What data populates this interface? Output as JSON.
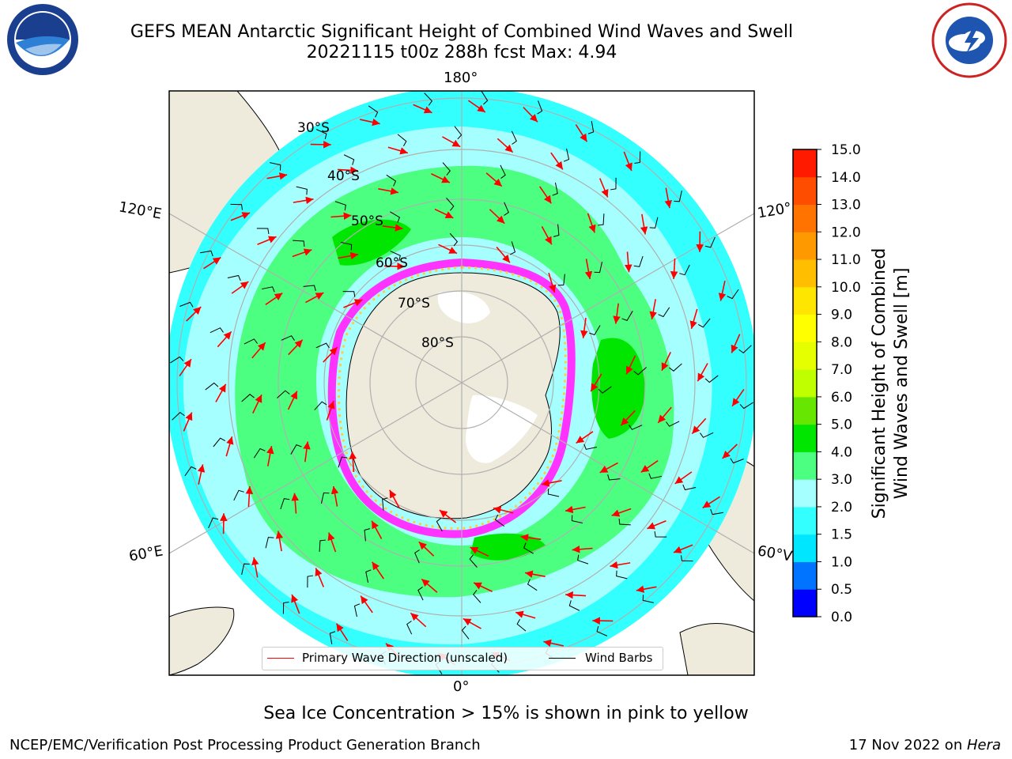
{
  "title_line1": "GEFS MEAN Antarctic Significant Height of Combined Wind Waves and Swell",
  "title_line2": "20221115 t00z 288h fcst   Max: 4.94",
  "longitude_labels": {
    "top": "180°",
    "bottom": "0°",
    "upper_left": "120°E",
    "upper_right": "120°",
    "lower_left": "60°E",
    "lower_right": "60°V"
  },
  "latitude_labels": [
    "30°S",
    "40°S",
    "50°S",
    "60°S",
    "70°S",
    "80°S"
  ],
  "colorbar": {
    "label_line1": "Significant Height of Combined",
    "label_line2": "Wind Waves and Swell [m]",
    "ticks": [
      "0.0",
      "0.5",
      "1.0",
      "1.5",
      "2.0",
      "3.0",
      "4.0",
      "5.0",
      "6.0",
      "7.0",
      "8.0",
      "9.0",
      "10.0",
      "11.0",
      "12.0",
      "13.0",
      "14.0",
      "15.0"
    ],
    "colors": [
      "#0000ff",
      "#0073ff",
      "#00e6ff",
      "#33ffff",
      "#a6ffff",
      "#4dff80",
      "#00e600",
      "#66e600",
      "#bfff00",
      "#e6ff00",
      "#ffff00",
      "#ffe600",
      "#ffbf00",
      "#ff9900",
      "#ff7300",
      "#ff4d00",
      "#ff1a00"
    ]
  },
  "legend": {
    "primary_wave": "Primary Wave Direction (unscaled)",
    "wind_barbs": "Wind Barbs"
  },
  "caption": "Sea Ice Concentration > 15% is shown in pink to yellow",
  "footer_left": "NCEP/EMC/Verification Post Processing Product Generation Branch",
  "footer_right_prefix": "17 Nov 2022 on ",
  "footer_right_machine": "Hera",
  "colors": {
    "land": "#eeebdc",
    "sea_ice_pink": "#ff33ff",
    "sea_ice_yellow": "#ffcc44",
    "wave_arrow": "#ff0000",
    "graticule": "#b0b0b0"
  }
}
